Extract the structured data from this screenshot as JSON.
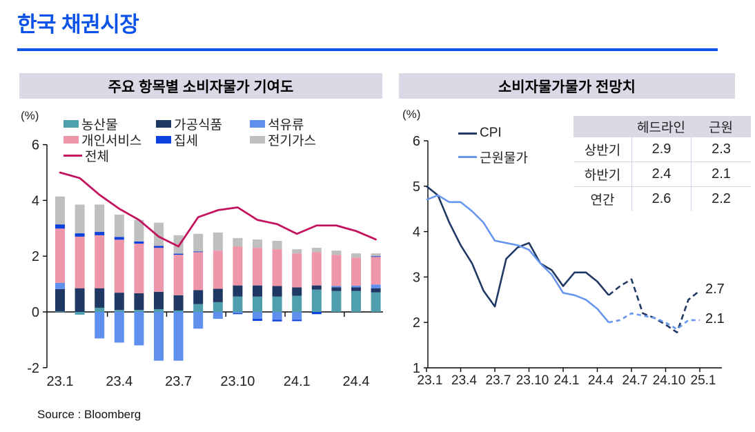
{
  "page": {
    "title": "한국 채권시장",
    "source": "Source : Bloomberg"
  },
  "left_panel": {
    "header": "주요 항목별 소비자물가 기여도",
    "unit": "(%)"
  },
  "right_panel": {
    "header": "소비자물가물가 전망치",
    "unit": "(%)",
    "table": {
      "col_headers": [
        "헤드라인",
        "근원"
      ],
      "rows": [
        {
          "label": "상반기",
          "headline": "2.9",
          "core": "2.3"
        },
        {
          "label": "하반기",
          "headline": "2.4",
          "core": "2.1"
        },
        {
          "label": "연간",
          "headline": "2.6",
          "core": "2.2"
        }
      ]
    }
  },
  "colors": {
    "title_blue": "#0b52e8",
    "header_bg": "#dadae6",
    "axis": "#000000"
  },
  "chart_data": [
    {
      "type": "bar",
      "subtype": "stacked-bar-with-line",
      "title": "주요 항목별 소비자물가 기여도",
      "ylabel": "(%)",
      "ylim": [
        -2,
        6
      ],
      "y_ticks": [
        6,
        4,
        2,
        0,
        -2
      ],
      "categories": [
        "23.1",
        "23.2",
        "23.3",
        "23.4",
        "23.5",
        "23.6",
        "23.7",
        "23.8",
        "23.9",
        "23.10",
        "23.11",
        "23.12",
        "24.1",
        "24.2",
        "24.3",
        "24.4",
        "24.5"
      ],
      "x_tick_labels": [
        "23.1",
        "23.4",
        "23.7",
        "23.10",
        "24.1",
        "24.4"
      ],
      "x_tick_label_months": [
        0,
        3,
        6,
        9,
        12,
        15
      ],
      "stack_series": [
        {
          "key": "agricultural",
          "name": "농산물",
          "color": "#4f9fae",
          "values": [
            0.02,
            -0.1,
            0.15,
            0.07,
            0.07,
            0.1,
            0.05,
            0.28,
            0.35,
            0.55,
            0.55,
            0.55,
            0.58,
            0.8,
            0.75,
            0.75,
            0.7
          ]
        },
        {
          "key": "processed-food",
          "name": "가공식품",
          "color": "#1f3864",
          "values": [
            0.8,
            0.85,
            0.7,
            0.62,
            0.6,
            0.62,
            0.55,
            0.5,
            0.48,
            0.4,
            0.4,
            0.38,
            0.3,
            0.15,
            0.13,
            0.13,
            0.15
          ]
        },
        {
          "key": "petroleum",
          "name": "석유류",
          "color": "#5f90ee",
          "values": [
            0.22,
            0.0,
            -0.95,
            -1.1,
            -1.2,
            -1.75,
            -1.75,
            -0.6,
            -0.25,
            -0.05,
            -0.25,
            -0.28,
            -0.28,
            0.0,
            0.05,
            0.06,
            0.13
          ]
        },
        {
          "key": "personal-services",
          "name": "개인서비스",
          "color": "#ee97ab",
          "values": [
            1.95,
            1.85,
            1.9,
            1.9,
            1.78,
            1.58,
            1.45,
            1.37,
            1.37,
            1.4,
            1.35,
            1.32,
            1.22,
            1.2,
            1.12,
            1.01,
            1.0
          ]
        },
        {
          "key": "rent",
          "name": "집세",
          "color": "#0c41dc",
          "values": [
            0.15,
            0.12,
            0.12,
            0.1,
            0.08,
            0.07,
            0.04,
            0.02,
            0.0,
            -0.03,
            -0.07,
            -0.06,
            -0.05,
            -0.08,
            0.0,
            0.0,
            0.02
          ]
        },
        {
          "key": "electricity-gas",
          "name": "전기가스",
          "color": "#bfbfbf",
          "values": [
            1.0,
            1.03,
            0.98,
            0.8,
            0.77,
            0.83,
            0.66,
            0.63,
            0.65,
            0.3,
            0.3,
            0.3,
            0.15,
            0.15,
            0.15,
            0.15,
            0.1
          ]
        }
      ],
      "line_series": {
        "key": "headline-total",
        "name": "전체",
        "color": "#c5125f",
        "values": [
          5.0,
          4.8,
          4.2,
          3.7,
          3.3,
          2.7,
          2.35,
          3.4,
          3.65,
          3.75,
          3.3,
          3.15,
          2.8,
          3.1,
          3.1,
          2.9,
          2.6
        ]
      }
    },
    {
      "type": "line",
      "title": "소비자물가물가 전망치",
      "ylabel": "(%)",
      "ylim": [
        1,
        6
      ],
      "y_ticks": [
        6,
        5,
        4,
        3,
        2,
        1
      ],
      "n_months": 25,
      "x_tick_labels": [
        "23.1",
        "23.4",
        "23.7",
        "23.10",
        "24.1",
        "24.4",
        "24.7",
        "24.10",
        "25.1"
      ],
      "x_tick_months": [
        0,
        3,
        6,
        9,
        12,
        15,
        18,
        21,
        24
      ],
      "forecast_start_month": 16,
      "series": [
        {
          "key": "cpi",
          "name": "CPI",
          "color": "#1f3864",
          "end_label": "2.7",
          "solid": [
            5.0,
            4.8,
            4.2,
            3.7,
            3.3,
            2.7,
            2.35,
            3.4,
            3.65,
            3.75,
            3.3,
            3.15,
            2.8,
            3.1,
            3.1,
            2.9,
            2.6
          ],
          "dashed": [
            2.6,
            2.8,
            2.95,
            2.2,
            2.1,
            1.95,
            1.78,
            2.5,
            2.7
          ]
        },
        {
          "key": "core",
          "name": "근원물가",
          "color": "#6696ee",
          "end_label": "2.1",
          "solid": [
            4.7,
            4.8,
            4.65,
            4.65,
            4.45,
            4.2,
            3.8,
            3.75,
            3.7,
            3.6,
            3.3,
            3.05,
            2.65,
            2.6,
            2.5,
            2.3,
            2.0
          ],
          "dashed": [
            2.0,
            2.05,
            2.2,
            2.15,
            2.1,
            2.0,
            1.85,
            2.05,
            2.05
          ]
        }
      ]
    }
  ]
}
